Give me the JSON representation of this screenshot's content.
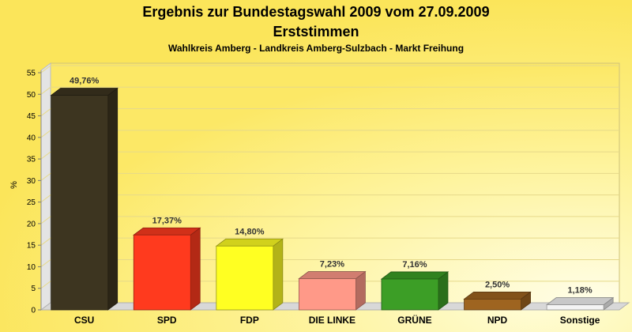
{
  "chart_data": {
    "type": "bar",
    "title": "Ergebnis zur Bundestagswahl 2009 vom 27.09.2009",
    "title_line2": "Erststimmen",
    "subtitle": "Wahlkreis Amberg - Landkreis Amberg-Sulzbach - Markt Freihung",
    "xlabel": "",
    "ylabel": "%",
    "ylim": [
      0,
      55
    ],
    "yticks": [
      0,
      5,
      10,
      15,
      20,
      25,
      30,
      35,
      40,
      45,
      50,
      55
    ],
    "ytick_labels": [
      "0",
      "5",
      "10",
      "15",
      "20",
      "25",
      "30",
      "35",
      "40",
      "45",
      "50",
      "55"
    ],
    "grid": true,
    "categories": [
      "CSU",
      "SPD",
      "FDP",
      "DIE LINKE",
      "GRÜNE",
      "NPD",
      "Sonstige"
    ],
    "values": [
      49.76,
      17.37,
      14.8,
      7.23,
      7.16,
      2.5,
      1.18
    ],
    "value_labels": [
      "49,76%",
      "17,37%",
      "14,80%",
      "7,23%",
      "7,16%",
      "2,50%",
      "1,18%"
    ],
    "colors": [
      "#3D3520",
      "#FF3A1E",
      "#FFFF22",
      "#FF9988",
      "#3C9E26",
      "#9E6420",
      "#F4F4F4"
    ]
  }
}
